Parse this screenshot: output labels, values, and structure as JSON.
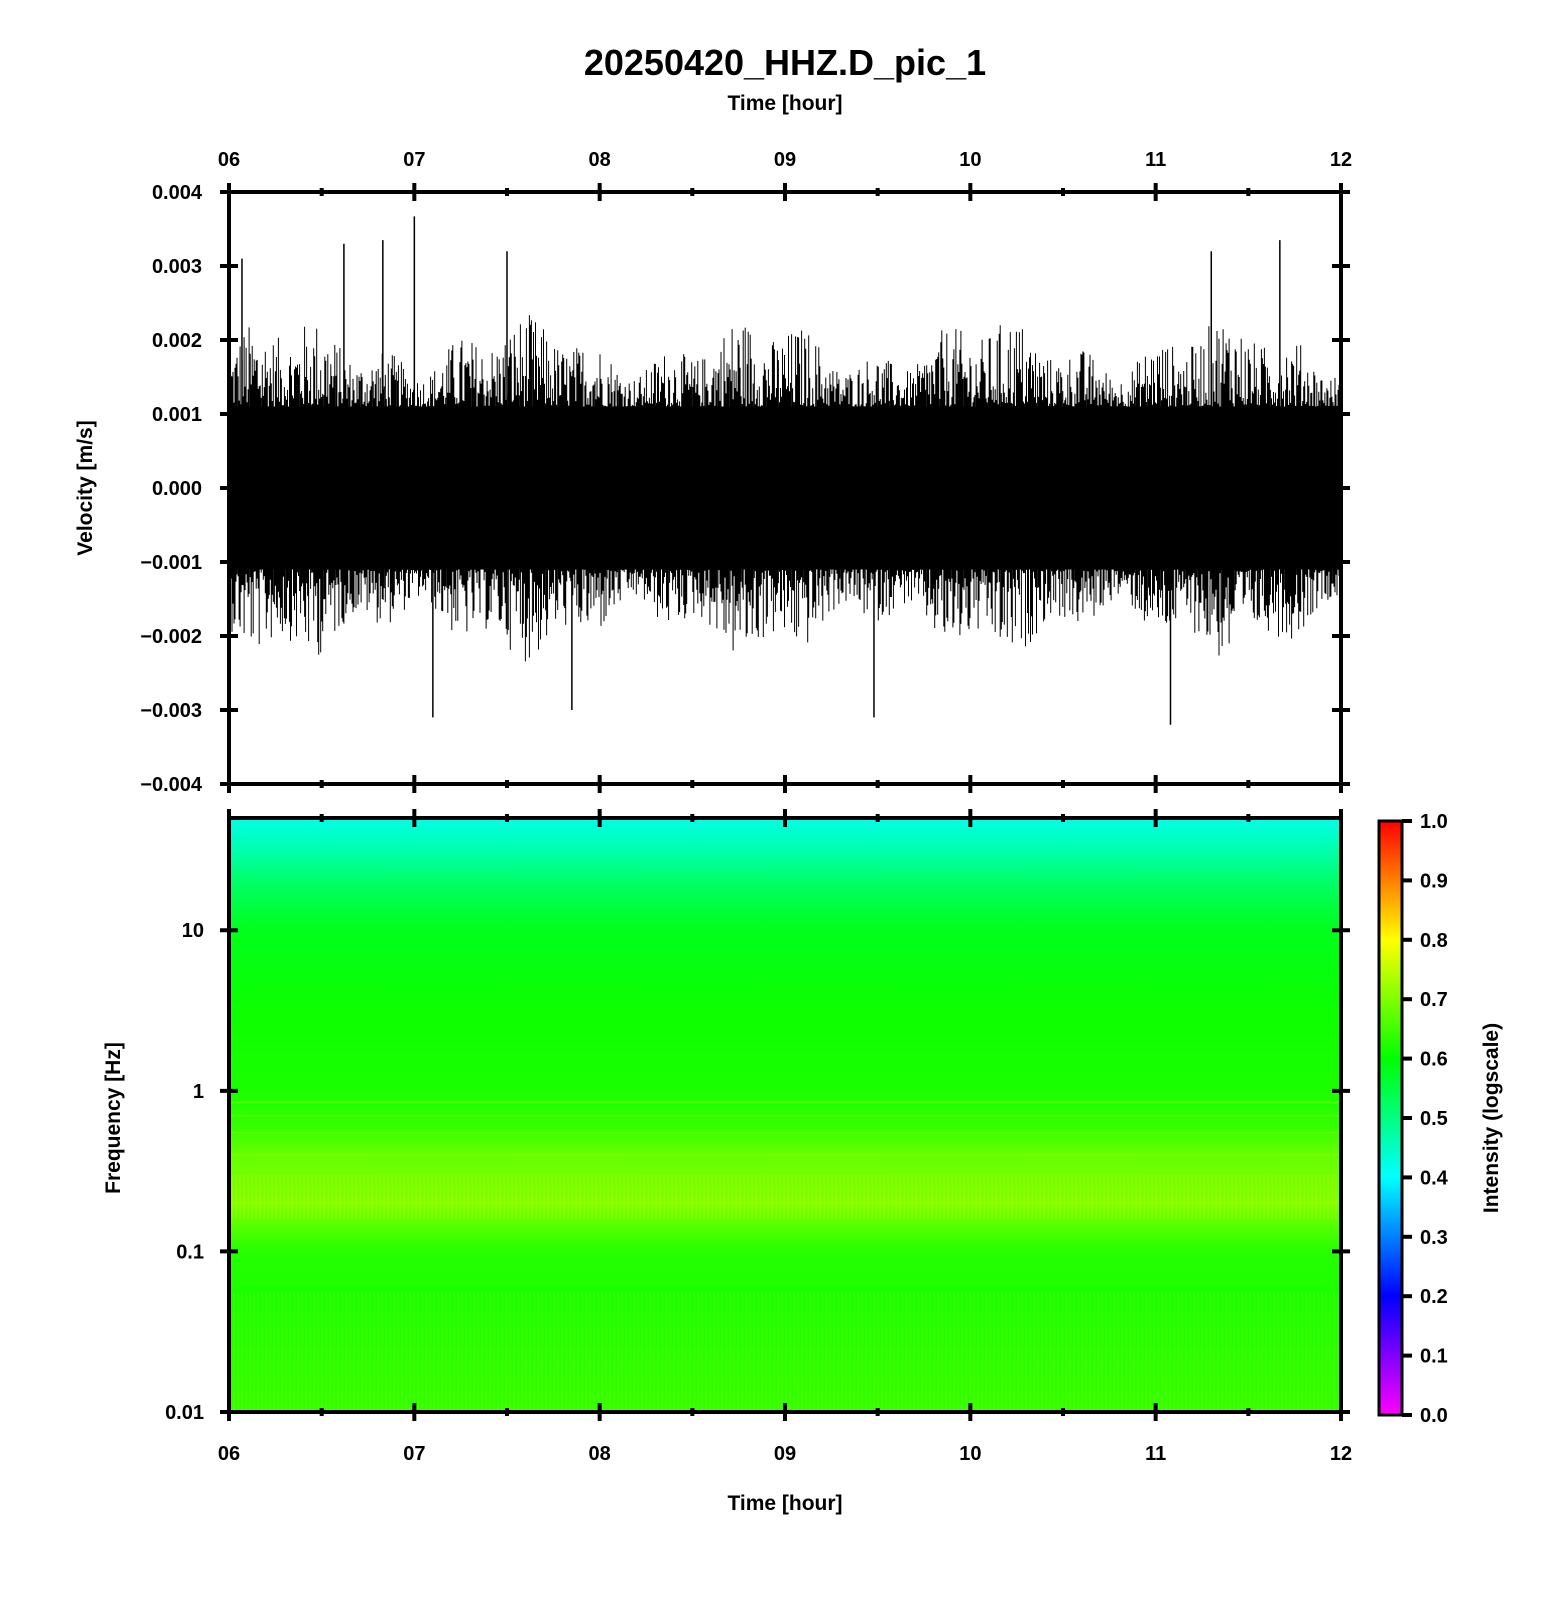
{
  "title": "20250420_HHZ.D_pic_1",
  "chart_data": [
    {
      "type": "line",
      "name": "waveform",
      "xlabel_top": "Time [hour]",
      "xlabel": "",
      "ylabel": "Velocity [m/s]",
      "x_ticks": [
        "06",
        "07",
        "08",
        "09",
        "10",
        "11",
        "12"
      ],
      "xlim": [
        6,
        12
      ],
      "ylim": [
        -0.004,
        0.004
      ],
      "y_ticks": [
        "0.004",
        "0.003",
        "0.002",
        "0.001",
        "0.000",
        "−0.001",
        "−0.002",
        "−0.003",
        "−0.004"
      ],
      "y_tick_values": [
        0.004,
        0.003,
        0.002,
        0.001,
        0.0,
        -0.001,
        -0.002,
        -0.003,
        -0.004
      ],
      "envelope": {
        "dense_band_amplitude": 0.0011,
        "typical_peak": 0.0022,
        "max_positive": 0.00367,
        "max_negative": -0.0032
      },
      "peaks": [
        {
          "x": 6.07,
          "y": 0.0031
        },
        {
          "x": 6.62,
          "y": 0.0033
        },
        {
          "x": 6.83,
          "y": 0.00335
        },
        {
          "x": 7.0,
          "y": 0.00367
        },
        {
          "x": 7.1,
          "y": -0.0031
        },
        {
          "x": 7.5,
          "y": 0.0032
        },
        {
          "x": 7.85,
          "y": -0.003
        },
        {
          "x": 9.48,
          "y": -0.0031
        },
        {
          "x": 11.08,
          "y": -0.0032
        },
        {
          "x": 11.3,
          "y": 0.0032
        },
        {
          "x": 11.67,
          "y": 0.00335
        }
      ],
      "color": "#000000"
    },
    {
      "type": "heatmap",
      "name": "spectrogram",
      "xlabel": "Time [hour]",
      "ylabel": "Frequency [Hz]",
      "x_ticks": [
        "06",
        "07",
        "08",
        "09",
        "10",
        "11",
        "12"
      ],
      "xlim": [
        6,
        12
      ],
      "y_scale": "log",
      "ylim": [
        0.01,
        50
      ],
      "y_ticks": [
        "10",
        "1",
        "0.1",
        "0.01"
      ],
      "y_tick_values": [
        10,
        1,
        0.1,
        0.01
      ],
      "colorbar": {
        "label": "Intensity (logscale)",
        "range": [
          0.0,
          1.0
        ],
        "ticks": [
          "1.0",
          "0.9",
          "0.8",
          "0.7",
          "0.6",
          "0.5",
          "0.4",
          "0.3",
          "0.2",
          "0.1",
          "0.0"
        ],
        "tick_values": [
          1.0,
          0.9,
          0.8,
          0.7,
          0.6,
          0.5,
          0.4,
          0.3,
          0.2,
          0.1,
          0.0
        ],
        "colormap": [
          "#ff00ff",
          "#8000ff",
          "#0000ff",
          "#0080ff",
          "#00ffff",
          "#00ff80",
          "#00ff00",
          "#80ff00",
          "#ffff00",
          "#ff8000",
          "#ff0000"
        ]
      },
      "intensity_profile": [
        {
          "freq": 50,
          "intensity": 0.42
        },
        {
          "freq": 30,
          "intensity": 0.47
        },
        {
          "freq": 20,
          "intensity": 0.52
        },
        {
          "freq": 10,
          "intensity": 0.58
        },
        {
          "freq": 3,
          "intensity": 0.61
        },
        {
          "freq": 1,
          "intensity": 0.62
        },
        {
          "freq": 0.6,
          "intensity": 0.64
        },
        {
          "freq": 0.4,
          "intensity": 0.68
        },
        {
          "freq": 0.2,
          "intensity": 0.7
        },
        {
          "freq": 0.1,
          "intensity": 0.63
        },
        {
          "freq": 0.05,
          "intensity": 0.62
        },
        {
          "freq": 0.01,
          "intensity": 0.64
        }
      ]
    }
  ]
}
